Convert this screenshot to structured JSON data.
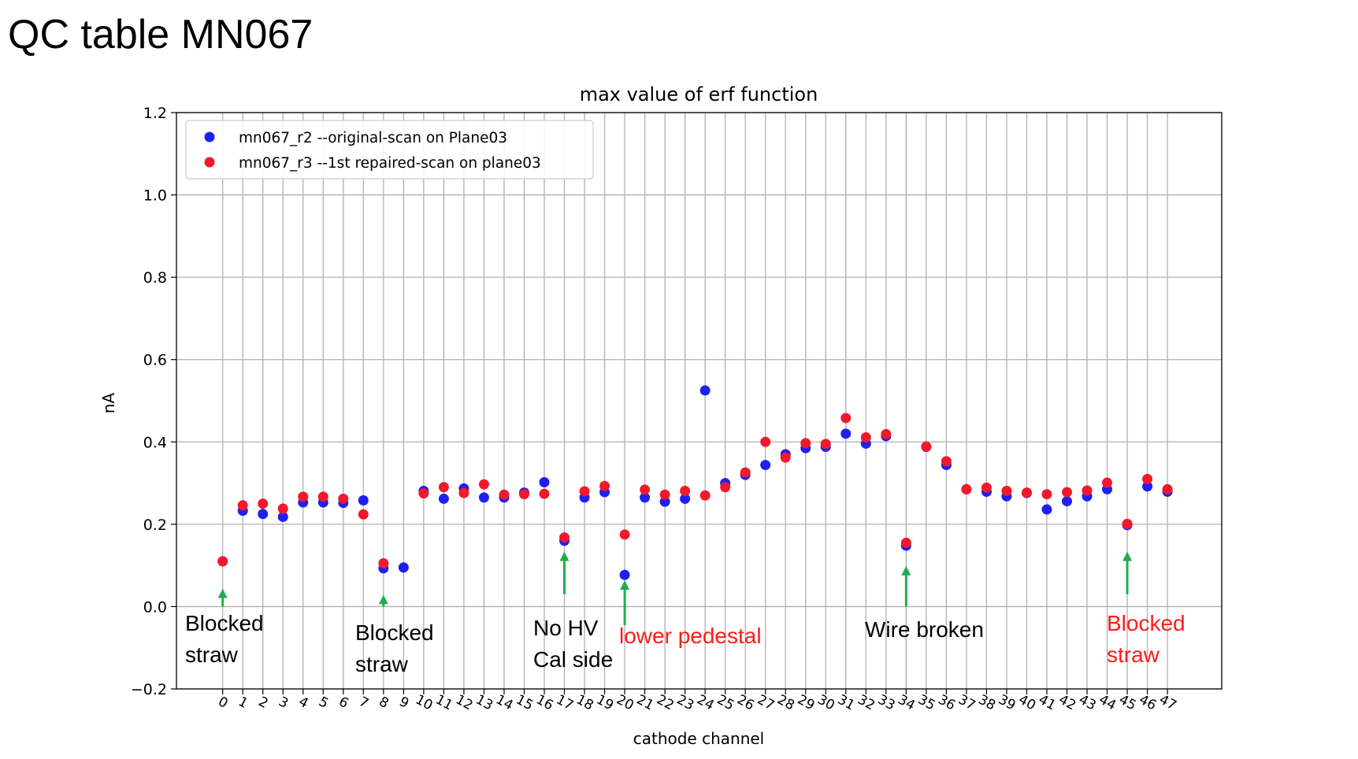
{
  "slide": {
    "title": "QC table MN067"
  },
  "colors": {
    "series_r2": "#1f1ff2",
    "series_r3": "#f2192b",
    "arrow": "#1fae4f",
    "annotation_black": "#000000",
    "annotation_red": "#ff1a1a"
  },
  "chart_data": {
    "type": "scatter",
    "title": "max value of erf function",
    "xlabel": "cathode channel",
    "ylabel": "nA",
    "xlim": [
      -2.3,
      49.7
    ],
    "ylim": [
      -0.2,
      1.2
    ],
    "yticks": [
      -0.2,
      0.0,
      0.2,
      0.4,
      0.6,
      0.8,
      1.0,
      1.2
    ],
    "ytick_labels": [
      "−0.2",
      "0.0",
      "0.2",
      "0.4",
      "0.6",
      "0.8",
      "1.0",
      "1.2"
    ],
    "xticks": [
      0,
      1,
      2,
      3,
      4,
      5,
      6,
      7,
      8,
      9,
      10,
      11,
      12,
      13,
      14,
      15,
      16,
      17,
      18,
      19,
      20,
      21,
      22,
      23,
      24,
      25,
      26,
      27,
      28,
      29,
      30,
      31,
      32,
      33,
      34,
      35,
      36,
      37,
      38,
      39,
      40,
      41,
      42,
      43,
      44,
      45,
      46,
      47
    ],
    "xtick_labels": [
      "0",
      "1",
      "2",
      "3",
      "4",
      "5",
      "6",
      "7",
      "8",
      "9",
      "10",
      "11",
      "12",
      "13",
      "14",
      "15",
      "16",
      "17",
      "18",
      "19",
      "20",
      "21",
      "22",
      "23",
      "24",
      "25",
      "26",
      "27",
      "28",
      "29",
      "30",
      "31",
      "32",
      "33",
      "34",
      "35",
      "36",
      "37",
      "38",
      "39",
      "40",
      "41",
      "42",
      "43",
      "44",
      "45",
      "46",
      "47"
    ],
    "grid": true,
    "legend_position": "upper-left",
    "series": [
      {
        "name": "mn067_r2 --original-scan on Plane03",
        "x": [
          0,
          1,
          2,
          3,
          4,
          5,
          6,
          7,
          8,
          9,
          10,
          11,
          12,
          13,
          14,
          15,
          16,
          17,
          18,
          19,
          20,
          21,
          22,
          23,
          24,
          25,
          26,
          27,
          28,
          29,
          30,
          31,
          32,
          33,
          34,
          35,
          36,
          37,
          38,
          39,
          40,
          41,
          42,
          43,
          44,
          45,
          46,
          47
        ],
        "y": [
          0.11,
          0.233,
          0.225,
          0.218,
          0.253,
          0.253,
          0.252,
          0.258,
          0.093,
          0.095,
          0.281,
          0.262,
          0.287,
          0.265,
          0.265,
          0.277,
          0.302,
          0.16,
          0.265,
          0.278,
          0.077,
          0.265,
          0.255,
          0.262,
          0.525,
          0.3,
          0.32,
          0.344,
          0.37,
          0.385,
          0.388,
          0.42,
          0.396,
          0.414,
          0.148,
          0.388,
          0.344,
          0.285,
          0.279,
          0.268,
          0.276,
          0.236,
          0.256,
          0.268,
          0.285,
          0.198,
          0.292,
          0.279
        ]
      },
      {
        "name": "mn067_r3 --1st repaired-scan on plane03",
        "x": [
          0,
          1,
          2,
          3,
          4,
          5,
          6,
          7,
          8,
          9,
          10,
          11,
          12,
          13,
          14,
          15,
          16,
          17,
          18,
          19,
          20,
          21,
          22,
          23,
          24,
          25,
          26,
          27,
          28,
          29,
          30,
          31,
          32,
          33,
          34,
          35,
          36,
          37,
          38,
          39,
          40,
          41,
          42,
          43,
          44,
          45,
          46,
          47
        ],
        "y": [
          0.11,
          0.246,
          0.25,
          0.238,
          0.267,
          0.267,
          0.262,
          0.224,
          0.105,
          null,
          0.275,
          0.29,
          0.276,
          0.297,
          0.272,
          0.273,
          0.274,
          0.168,
          0.28,
          0.293,
          0.175,
          0.284,
          0.272,
          0.281,
          0.27,
          0.29,
          0.326,
          0.4,
          0.362,
          0.397,
          0.395,
          0.458,
          0.411,
          0.419,
          0.155,
          0.389,
          0.353,
          0.285,
          0.289,
          0.281,
          0.277,
          0.273,
          0.278,
          0.282,
          0.301,
          0.201,
          0.31,
          0.285
        ]
      }
    ],
    "annotations": [
      {
        "lines": [
          "Blocked",
          "straw"
        ],
        "color": "black",
        "x": 0,
        "arrow_top": 0.04,
        "arrow_bottom": 0.0
      },
      {
        "lines": [
          "Blocked",
          "straw"
        ],
        "color": "black",
        "x": 8,
        "arrow_top": 0.025,
        "arrow_bottom": 0.0
      },
      {
        "lines": [
          "No HV",
          "Cal side"
        ],
        "color": "black",
        "x": 17,
        "arrow_top": 0.13,
        "arrow_bottom": 0.03
      },
      {
        "lines": [
          "lower pedestal"
        ],
        "color": "red",
        "x": 20,
        "arrow_top": 0.06,
        "arrow_bottom": -0.045
      },
      {
        "lines": [
          "Wire broken"
        ],
        "color": "black",
        "x": 34,
        "arrow_top": 0.095,
        "arrow_bottom": 0.0
      },
      {
        "lines": [
          "Blocked",
          "straw"
        ],
        "color": "red",
        "x": 45,
        "arrow_top": 0.13,
        "arrow_bottom": 0.03
      }
    ]
  }
}
